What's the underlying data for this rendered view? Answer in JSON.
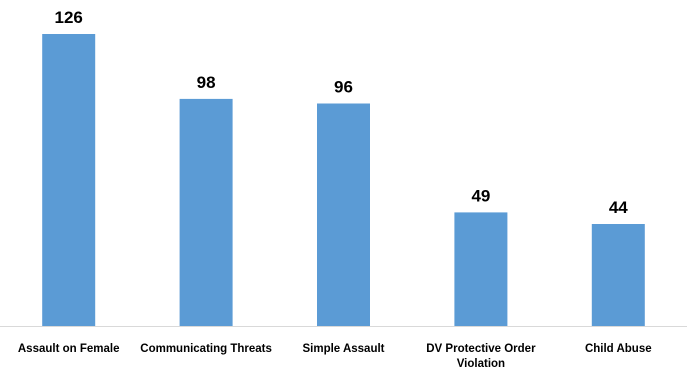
{
  "chart_data": {
    "type": "bar",
    "title": "",
    "xlabel": "",
    "ylabel": "",
    "categories": [
      "Assault on Female",
      "Communicating Threats",
      "Simple Assault",
      "DV Protective Order Violation",
      "Child Abuse"
    ],
    "values": [
      126,
      98,
      96,
      49,
      44
    ],
    "value_labels": [
      "126",
      "98",
      "96",
      "49",
      "44"
    ],
    "ylim": [
      0,
      126
    ],
    "grid": false,
    "legend": "none",
    "colors": {
      "bar": "#5b9bd5",
      "axis": "#d9d9d9",
      "text": "#000000"
    }
  }
}
